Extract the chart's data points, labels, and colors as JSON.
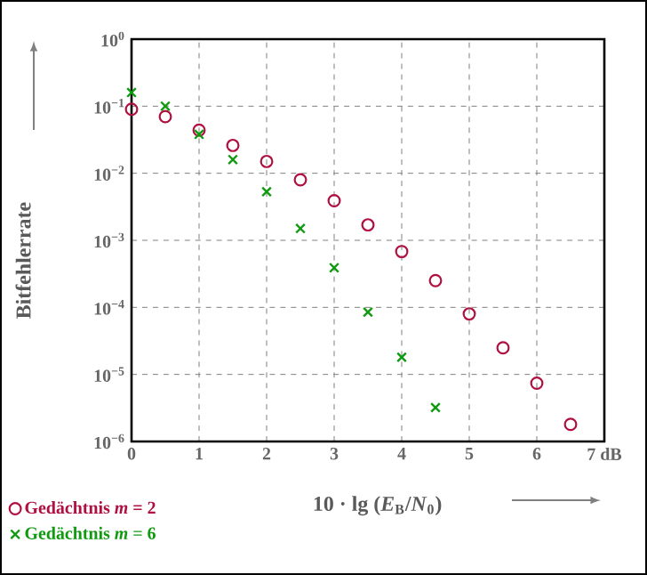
{
  "chart_data": {
    "type": "scatter",
    "xlabel": "10 · lg (*E*$_{B}$/*N*$_{0}$)",
    "ylabel": "Bitfehlerrate",
    "x": [
      0,
      0.5,
      1,
      1.5,
      2,
      2.5,
      3,
      3.5,
      4,
      4.5,
      5,
      5.5,
      6,
      6.5
    ],
    "series": [
      {
        "name": "Gedächtnis *m* = 2",
        "color": "#b01040",
        "marker": "circle",
        "values": [
          0.09,
          0.07,
          0.044,
          0.026,
          0.015,
          0.008,
          0.0039,
          0.0017,
          0.00068,
          0.00025,
          8e-05,
          2.5e-05,
          7.4e-06,
          1.8e-06
        ]
      },
      {
        "name": "Gedächtnis *m* = 6",
        "color": "#109a10",
        "marker": "cross",
        "x": [
          0,
          0.5,
          1,
          1.5,
          2,
          2.5,
          3,
          3.5,
          4,
          4.5
        ],
        "values": [
          0.16,
          0.1,
          0.038,
          0.016,
          0.0053,
          0.0015,
          0.00039,
          8.5e-05,
          1.8e-05,
          3.2e-06
        ]
      }
    ],
    "log": "y",
    "xlim": [
      0,
      7
    ],
    "ylim": [
      1e-06,
      1
    ],
    "xticks": [
      0,
      1,
      2,
      3,
      4,
      5,
      6,
      {
        "value": 7,
        "label": "7 dB"
      }
    ],
    "yticks": [
      {
        "value": 1e-06,
        "label": "10$^{−6}$"
      },
      {
        "value": 1e-05,
        "label": "10$^{−5}$"
      },
      {
        "value": 0.0001,
        "label": "10$^{−4}$"
      },
      {
        "value": 0.001,
        "label": "10$^{−3}$"
      },
      {
        "value": 0.01,
        "label": "10$^{−2}$"
      },
      {
        "value": 0.1,
        "label": "10$^{−1}$"
      },
      {
        "value": 1,
        "label": "10$^{0}$"
      }
    ],
    "grid": true,
    "legend": "bottom left"
  }
}
